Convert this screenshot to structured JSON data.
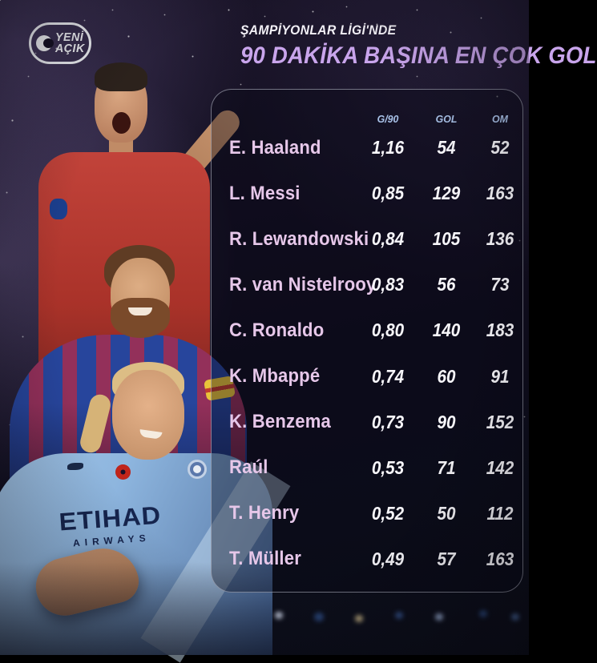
{
  "logo": {
    "line1": "YENİ",
    "line2": "AÇIK"
  },
  "header": {
    "kicker": "ŞAMPİYONLAR LİGİ'NDE",
    "title": "90 DAKİKA BAŞINA EN ÇOK GOL"
  },
  "collage": {
    "shirt_line1": "ETIHAD",
    "shirt_line2": "AIRWAYS"
  },
  "colors": {
    "title_lilac": "#c9a5ec",
    "header_blue": "#a9c2e8",
    "name_pink": "#e6c7e9",
    "value_white": "#f7f6fa",
    "background_dark": "#120e20",
    "panel_border": "#c3c6d6"
  },
  "chart_data": {
    "type": "table",
    "title": "90 DAKİKA BAŞINA EN ÇOK GOL",
    "subtitle": "ŞAMPİYONLAR LİGİ'NDE",
    "columns": [
      "G/90",
      "GOL",
      "OM"
    ],
    "rows": [
      {
        "player": "E. Haaland",
        "values": [
          "1,16",
          "54",
          "52"
        ]
      },
      {
        "player": "L. Messi",
        "values": [
          "0,85",
          "129",
          "163"
        ]
      },
      {
        "player": "R. Lewandowski",
        "values": [
          "0,84",
          "105",
          "136"
        ]
      },
      {
        "player": "R. van Nistelrooy",
        "values": [
          "0,83",
          "56",
          "73"
        ]
      },
      {
        "player": "C. Ronaldo",
        "values": [
          "0,80",
          "140",
          "183"
        ]
      },
      {
        "player": "K. Mbappé",
        "values": [
          "0,74",
          "60",
          "91"
        ]
      },
      {
        "player": "K. Benzema",
        "values": [
          "0,73",
          "90",
          "152"
        ]
      },
      {
        "player": "Raúl",
        "values": [
          "0,53",
          "71",
          "142"
        ]
      },
      {
        "player": "T. Henry",
        "values": [
          "0,52",
          "50",
          "112"
        ]
      },
      {
        "player": "T. Müller",
        "values": [
          "0,49",
          "57",
          "163"
        ]
      }
    ]
  }
}
